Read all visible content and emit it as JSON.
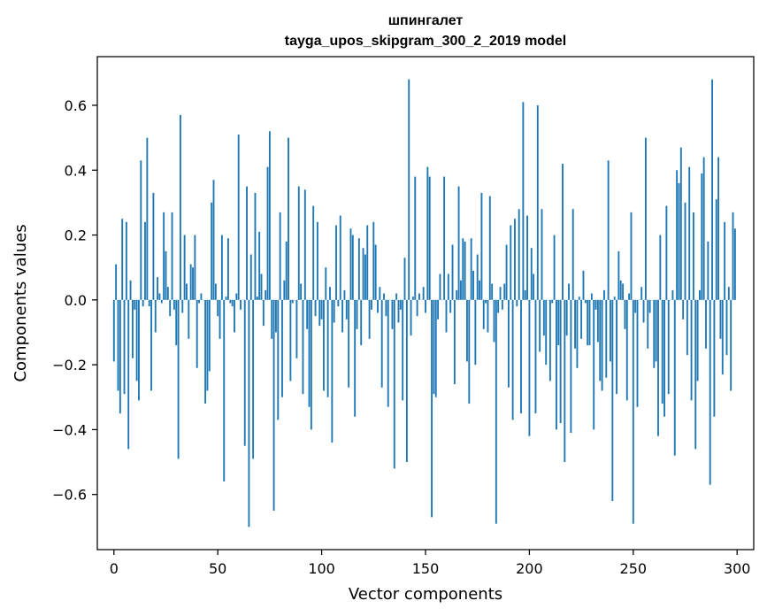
{
  "chart_data": {
    "type": "bar",
    "title": "шпингалет",
    "subtitle": "tayga_upos_skipgram_300_2_2019 model",
    "xlabel": "Vector components",
    "ylabel": "Components values",
    "xlim": [
      -8,
      308
    ],
    "ylim": [
      -0.77,
      0.75
    ],
    "xticks": [
      0,
      50,
      100,
      150,
      200,
      250,
      300
    ],
    "yticks": [
      -0.6,
      -0.4,
      -0.2,
      0.0,
      0.2,
      0.4,
      0.6
    ],
    "xtick_labels": [
      "0",
      "50",
      "100",
      "150",
      "200",
      "250",
      "300"
    ],
    "ytick_labels": [
      "−0.6",
      "−0.4",
      "−0.2",
      "0.0",
      "0.2",
      "0.4",
      "0.6"
    ],
    "grid": false,
    "bar_color": "#1f77b4",
    "values": [
      -0.19,
      0.11,
      -0.28,
      -0.35,
      0.25,
      -0.29,
      0.24,
      -0.46,
      0.06,
      -0.18,
      -0.03,
      -0.25,
      -0.31,
      0.43,
      -0.02,
      0.24,
      0.5,
      -0.02,
      -0.28,
      0.33,
      -0.1,
      0.07,
      0.02,
      -0.01,
      0.27,
      0.15,
      0.04,
      -0.05,
      0.27,
      -0.03,
      -0.14,
      -0.49,
      0.57,
      -0.04,
      0.2,
      0.05,
      -0.12,
      0.11,
      0.1,
      0.2,
      -0.21,
      -0.01,
      0.02,
      0.0,
      -0.32,
      -0.28,
      -0.22,
      0.3,
      0.37,
      0.05,
      -0.05,
      -0.12,
      0.2,
      -0.56,
      0.01,
      0.19,
      -0.01,
      -0.02,
      -0.1,
      0.02,
      0.51,
      -0.03,
      0.0,
      -0.45,
      0.35,
      -0.7,
      0.14,
      -0.49,
      0.33,
      0.01,
      0.21,
      0.08,
      -0.08,
      0.03,
      0.41,
      0.52,
      -0.12,
      -0.65,
      -0.1,
      -0.37,
      0.27,
      -0.3,
      0.06,
      0.18,
      0.5,
      -0.25,
      -0.01,
      0.0,
      -0.18,
      0.35,
      0.05,
      -0.29,
      0.34,
      -0.09,
      -0.33,
      -0.4,
      0.29,
      -0.05,
      0.24,
      -0.08,
      -0.06,
      -0.28,
      0.1,
      -0.3,
      0.04,
      -0.44,
      -0.07,
      0.23,
      -0.02,
      0.26,
      -0.1,
      0.03,
      -0.06,
      -0.27,
      0.22,
      0.2,
      -0.36,
      -0.09,
      0.19,
      -0.14,
      0.16,
      0.14,
      0.23,
      -0.12,
      -0.03,
      0.24,
      0.17,
      -0.04,
      0.04,
      -0.27,
      0.02,
      -0.05,
      -0.33,
      0.0,
      -0.09,
      -0.52,
      0.02,
      -0.07,
      -0.03,
      -0.31,
      0.13,
      -0.5,
      0.68,
      -0.11,
      0.01,
      0.38,
      -0.05,
      0.02,
      0.0,
      0.04,
      -0.04,
      0.41,
      0.38,
      -0.67,
      -0.29,
      -0.3,
      -0.06,
      0.08,
      0.0,
      0.38,
      -0.1,
      0.08,
      -0.04,
      0.17,
      -0.26,
      0.03,
      0.35,
      0.06,
      0.19,
      0.18,
      -0.19,
      -0.32,
      0.19,
      0.09,
      -0.2,
      0.14,
      0.06,
      0.33,
      -0.09,
      -0.01,
      -0.1,
      0.32,
      0.05,
      -0.13,
      -0.69,
      -0.04,
      0.04,
      -0.03,
      0.05,
      0.17,
      -0.27,
      0.23,
      -0.37,
      0.25,
      -0.02,
      0.28,
      -0.35,
      0.61,
      0.03,
      0.26,
      -0.42,
      0.16,
      0.08,
      -0.35,
      0.6,
      -0.16,
      0.28,
      -0.11,
      -0.2,
      0.0,
      -0.25,
      -0.01,
      0.2,
      -0.4,
      -0.14,
      -0.38,
      0.42,
      -0.5,
      -0.11,
      0.05,
      -0.41,
      0.28,
      -0.15,
      -0.21,
      0.01,
      -0.12,
      0.09,
      -0.01,
      -0.14,
      -0.14,
      0.02,
      -0.4,
      -0.03,
      -0.13,
      -0.25,
      -0.28,
      0.03,
      -0.24,
      0.43,
      -0.19,
      -0.62,
      0.01,
      -0.29,
      0.15,
      0.06,
      0.05,
      -0.09,
      -0.31,
      0.02,
      0.27,
      -0.69,
      -0.04,
      -0.33,
      0.0,
      0.04,
      -0.07,
      0.5,
      -0.15,
      -0.04,
      0.0,
      -0.21,
      -0.19,
      -0.42,
      0.2,
      -0.32,
      -0.36,
      0.29,
      -0.29,
      0.0,
      0.03,
      -0.48,
      0.4,
      0.36,
      0.47,
      -0.06,
      0.3,
      -0.17,
      0.41,
      -0.31,
      0.27,
      -0.46,
      -0.25,
      0.03,
      0.39,
      0.44,
      -0.15,
      0.18,
      -0.57,
      0.68,
      -0.36,
      0.31,
      0.44,
      -0.12,
      -0.23,
      0.24,
      -0.17,
      0.04,
      -0.28,
      0.27,
      0.22
    ]
  }
}
